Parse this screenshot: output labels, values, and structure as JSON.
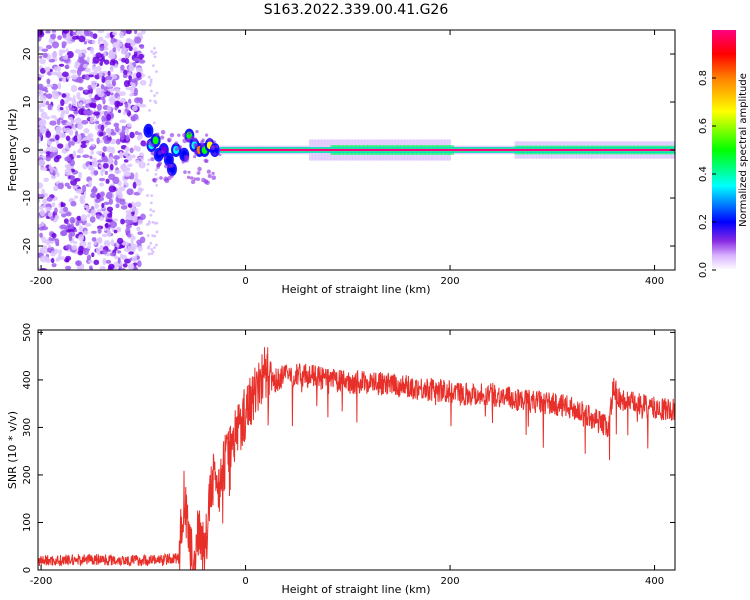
{
  "title": "S163.2022.339.00.41.G26",
  "chart_data": [
    {
      "type": "heatmap",
      "xlabel": "Height of straight line (km)",
      "ylabel": "Frequency (Hz)",
      "xlim": [
        -203,
        420
      ],
      "ylim": [
        -25,
        25
      ],
      "xticks": [
        -200,
        0,
        200,
        400
      ],
      "yticks": [
        -20,
        -10,
        0,
        10,
        20
      ],
      "colorbar": {
        "label": "Normalized spectral amplitude",
        "range": [
          0,
          1
        ],
        "ticks": [
          "0.0",
          "0.2",
          "0.4",
          "0.6",
          "0.8"
        ],
        "colormap": [
          "#ffffff",
          "#d9b3ff",
          "#8a2be2",
          "#0000ff",
          "#00ffff",
          "#00ff00",
          "#ffff00",
          "#ff8000",
          "#ff0000",
          "#ff0080"
        ]
      },
      "features": [
        {
          "x_start": -203,
          "x_end": -100,
          "freq_spread": 25,
          "amplitude": 0.25,
          "type": "noise"
        },
        {
          "x_start": -100,
          "x_end": -25,
          "freq_spread": 7,
          "amplitude": 0.35,
          "type": "transition"
        },
        {
          "x_start": -25,
          "x_end": 420,
          "freq": 0,
          "amplitude": 0.95,
          "type": "carrier-line"
        }
      ],
      "grid": false
    },
    {
      "type": "line",
      "xlabel": "Height of straight line (km)",
      "ylabel": "SNR (10 * v/v)",
      "xlim": [
        -203,
        420
      ],
      "ylim": [
        0,
        505
      ],
      "xticks": [
        -200,
        0,
        200,
        400
      ],
      "yticks": [
        0,
        100,
        200,
        300,
        400,
        500
      ],
      "color": "#e8302a",
      "grid": false,
      "series": [
        {
          "x": [
            -203,
            -180,
            -160,
            -140,
            -120,
            -100,
            -80,
            -65,
            -60,
            -55,
            -50,
            -45,
            -40,
            -35,
            -30,
            -25,
            -20,
            -15,
            -10,
            -5,
            0,
            5,
            10,
            15,
            20,
            25,
            30,
            40,
            60,
            80,
            100,
            120,
            140,
            160,
            180,
            200,
            220,
            240,
            260,
            280,
            300,
            320,
            340,
            355,
            360,
            365,
            380,
            400,
            420
          ],
          "y": [
            20,
            20,
            22,
            22,
            21,
            20,
            22,
            25,
            160,
            40,
            10,
            100,
            20,
            150,
            200,
            180,
            230,
            250,
            290,
            310,
            330,
            360,
            380,
            400,
            420,
            390,
            400,
            410,
            410,
            400,
            395,
            395,
            390,
            385,
            380,
            375,
            370,
            370,
            360,
            355,
            350,
            340,
            320,
            300,
            390,
            360,
            350,
            340,
            335
          ],
          "noise": 25
        }
      ]
    }
  ]
}
